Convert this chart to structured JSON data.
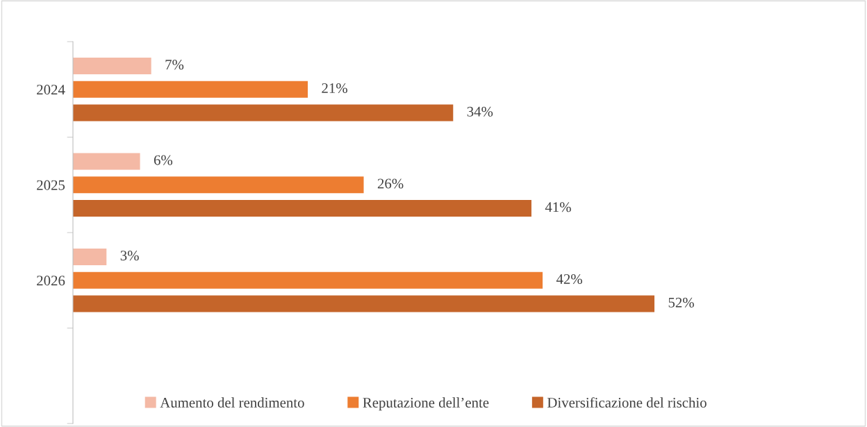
{
  "chart_data": {
    "type": "bar",
    "orientation": "horizontal",
    "categories": [
      "2024",
      "2025",
      "2026"
    ],
    "series": [
      {
        "name": "Aumento del rendimento",
        "color": "#f4b9a5",
        "values": [
          7,
          6,
          3
        ],
        "value_labels": [
          "7%",
          "6%",
          "3%"
        ]
      },
      {
        "name": "Reputazione dell’ente",
        "color": "#ed7d31",
        "values": [
          21,
          26,
          42
        ],
        "value_labels": [
          "21%",
          "26%",
          "42%"
        ]
      },
      {
        "name": "Diversificazione del rischio",
        "color": "#c5652a",
        "values": [
          34,
          41,
          52
        ],
        "value_labels": [
          "34%",
          "41%",
          "52%"
        ]
      }
    ],
    "legend": "bottom"
  }
}
